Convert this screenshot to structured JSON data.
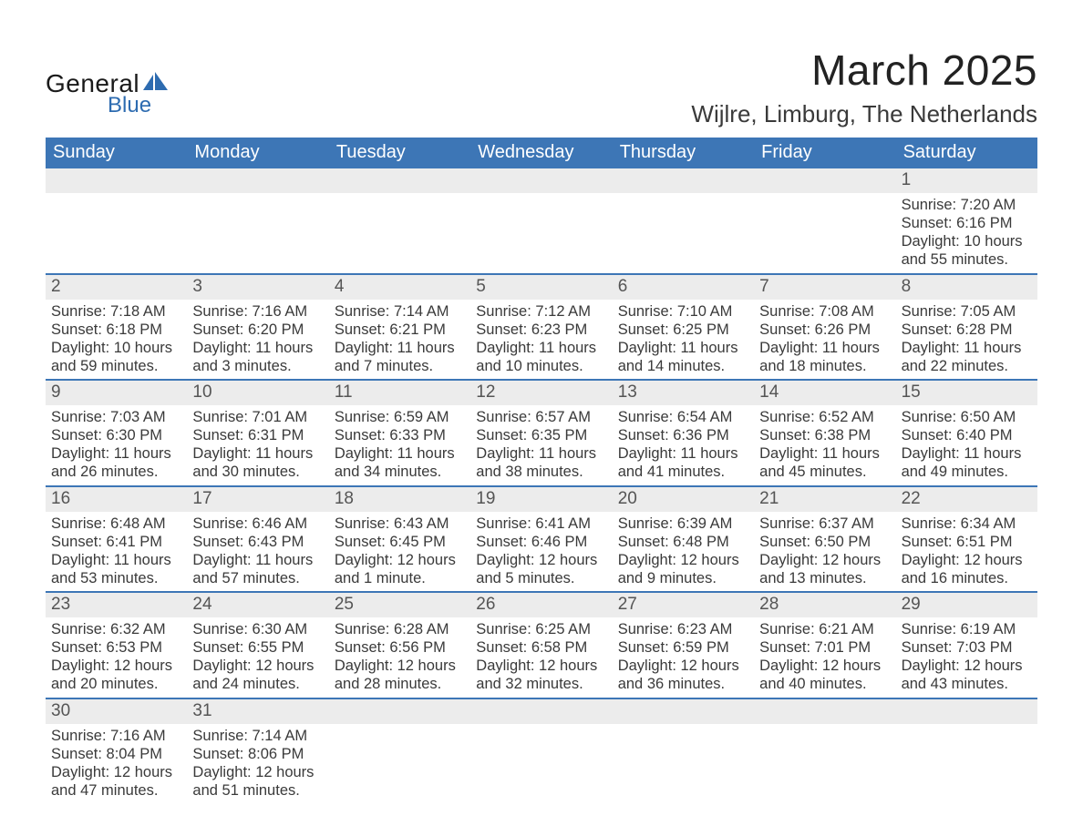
{
  "brand": {
    "top": "General",
    "bottom": "Blue",
    "icon_color": "#2d6bb0",
    "text_color_top": "#1a1a1a",
    "text_color_bottom": "#2d6bb0"
  },
  "header": {
    "month_title": "March 2025",
    "location": "Wijlre, Limburg, The Netherlands"
  },
  "styling": {
    "header_bg": "#3d76b6",
    "header_text": "#ffffff",
    "daynum_bg": "#ececec",
    "row_border": "#3d76b6",
    "body_text": "#3a3a3a",
    "page_bg": "#ffffff",
    "title_fontsize": 46,
    "location_fontsize": 26,
    "dayheader_fontsize": 20,
    "daynum_fontsize": 19,
    "cell_fontsize": 16.5
  },
  "day_names": [
    "Sunday",
    "Monday",
    "Tuesday",
    "Wednesday",
    "Thursday",
    "Friday",
    "Saturday"
  ],
  "weeks": [
    [
      {
        "day": "",
        "sunrise": "",
        "sunset": "",
        "daylight1": "",
        "daylight2": ""
      },
      {
        "day": "",
        "sunrise": "",
        "sunset": "",
        "daylight1": "",
        "daylight2": ""
      },
      {
        "day": "",
        "sunrise": "",
        "sunset": "",
        "daylight1": "",
        "daylight2": ""
      },
      {
        "day": "",
        "sunrise": "",
        "sunset": "",
        "daylight1": "",
        "daylight2": ""
      },
      {
        "day": "",
        "sunrise": "",
        "sunset": "",
        "daylight1": "",
        "daylight2": ""
      },
      {
        "day": "",
        "sunrise": "",
        "sunset": "",
        "daylight1": "",
        "daylight2": ""
      },
      {
        "day": "1",
        "sunrise": "Sunrise: 7:20 AM",
        "sunset": "Sunset: 6:16 PM",
        "daylight1": "Daylight: 10 hours",
        "daylight2": "and 55 minutes."
      }
    ],
    [
      {
        "day": "2",
        "sunrise": "Sunrise: 7:18 AM",
        "sunset": "Sunset: 6:18 PM",
        "daylight1": "Daylight: 10 hours",
        "daylight2": "and 59 minutes."
      },
      {
        "day": "3",
        "sunrise": "Sunrise: 7:16 AM",
        "sunset": "Sunset: 6:20 PM",
        "daylight1": "Daylight: 11 hours",
        "daylight2": "and 3 minutes."
      },
      {
        "day": "4",
        "sunrise": "Sunrise: 7:14 AM",
        "sunset": "Sunset: 6:21 PM",
        "daylight1": "Daylight: 11 hours",
        "daylight2": "and 7 minutes."
      },
      {
        "day": "5",
        "sunrise": "Sunrise: 7:12 AM",
        "sunset": "Sunset: 6:23 PM",
        "daylight1": "Daylight: 11 hours",
        "daylight2": "and 10 minutes."
      },
      {
        "day": "6",
        "sunrise": "Sunrise: 7:10 AM",
        "sunset": "Sunset: 6:25 PM",
        "daylight1": "Daylight: 11 hours",
        "daylight2": "and 14 minutes."
      },
      {
        "day": "7",
        "sunrise": "Sunrise: 7:08 AM",
        "sunset": "Sunset: 6:26 PM",
        "daylight1": "Daylight: 11 hours",
        "daylight2": "and 18 minutes."
      },
      {
        "day": "8",
        "sunrise": "Sunrise: 7:05 AM",
        "sunset": "Sunset: 6:28 PM",
        "daylight1": "Daylight: 11 hours",
        "daylight2": "and 22 minutes."
      }
    ],
    [
      {
        "day": "9",
        "sunrise": "Sunrise: 7:03 AM",
        "sunset": "Sunset: 6:30 PM",
        "daylight1": "Daylight: 11 hours",
        "daylight2": "and 26 minutes."
      },
      {
        "day": "10",
        "sunrise": "Sunrise: 7:01 AM",
        "sunset": "Sunset: 6:31 PM",
        "daylight1": "Daylight: 11 hours",
        "daylight2": "and 30 minutes."
      },
      {
        "day": "11",
        "sunrise": "Sunrise: 6:59 AM",
        "sunset": "Sunset: 6:33 PM",
        "daylight1": "Daylight: 11 hours",
        "daylight2": "and 34 minutes."
      },
      {
        "day": "12",
        "sunrise": "Sunrise: 6:57 AM",
        "sunset": "Sunset: 6:35 PM",
        "daylight1": "Daylight: 11 hours",
        "daylight2": "and 38 minutes."
      },
      {
        "day": "13",
        "sunrise": "Sunrise: 6:54 AM",
        "sunset": "Sunset: 6:36 PM",
        "daylight1": "Daylight: 11 hours",
        "daylight2": "and 41 minutes."
      },
      {
        "day": "14",
        "sunrise": "Sunrise: 6:52 AM",
        "sunset": "Sunset: 6:38 PM",
        "daylight1": "Daylight: 11 hours",
        "daylight2": "and 45 minutes."
      },
      {
        "day": "15",
        "sunrise": "Sunrise: 6:50 AM",
        "sunset": "Sunset: 6:40 PM",
        "daylight1": "Daylight: 11 hours",
        "daylight2": "and 49 minutes."
      }
    ],
    [
      {
        "day": "16",
        "sunrise": "Sunrise: 6:48 AM",
        "sunset": "Sunset: 6:41 PM",
        "daylight1": "Daylight: 11 hours",
        "daylight2": "and 53 minutes."
      },
      {
        "day": "17",
        "sunrise": "Sunrise: 6:46 AM",
        "sunset": "Sunset: 6:43 PM",
        "daylight1": "Daylight: 11 hours",
        "daylight2": "and 57 minutes."
      },
      {
        "day": "18",
        "sunrise": "Sunrise: 6:43 AM",
        "sunset": "Sunset: 6:45 PM",
        "daylight1": "Daylight: 12 hours",
        "daylight2": "and 1 minute."
      },
      {
        "day": "19",
        "sunrise": "Sunrise: 6:41 AM",
        "sunset": "Sunset: 6:46 PM",
        "daylight1": "Daylight: 12 hours",
        "daylight2": "and 5 minutes."
      },
      {
        "day": "20",
        "sunrise": "Sunrise: 6:39 AM",
        "sunset": "Sunset: 6:48 PM",
        "daylight1": "Daylight: 12 hours",
        "daylight2": "and 9 minutes."
      },
      {
        "day": "21",
        "sunrise": "Sunrise: 6:37 AM",
        "sunset": "Sunset: 6:50 PM",
        "daylight1": "Daylight: 12 hours",
        "daylight2": "and 13 minutes."
      },
      {
        "day": "22",
        "sunrise": "Sunrise: 6:34 AM",
        "sunset": "Sunset: 6:51 PM",
        "daylight1": "Daylight: 12 hours",
        "daylight2": "and 16 minutes."
      }
    ],
    [
      {
        "day": "23",
        "sunrise": "Sunrise: 6:32 AM",
        "sunset": "Sunset: 6:53 PM",
        "daylight1": "Daylight: 12 hours",
        "daylight2": "and 20 minutes."
      },
      {
        "day": "24",
        "sunrise": "Sunrise: 6:30 AM",
        "sunset": "Sunset: 6:55 PM",
        "daylight1": "Daylight: 12 hours",
        "daylight2": "and 24 minutes."
      },
      {
        "day": "25",
        "sunrise": "Sunrise: 6:28 AM",
        "sunset": "Sunset: 6:56 PM",
        "daylight1": "Daylight: 12 hours",
        "daylight2": "and 28 minutes."
      },
      {
        "day": "26",
        "sunrise": "Sunrise: 6:25 AM",
        "sunset": "Sunset: 6:58 PM",
        "daylight1": "Daylight: 12 hours",
        "daylight2": "and 32 minutes."
      },
      {
        "day": "27",
        "sunrise": "Sunrise: 6:23 AM",
        "sunset": "Sunset: 6:59 PM",
        "daylight1": "Daylight: 12 hours",
        "daylight2": "and 36 minutes."
      },
      {
        "day": "28",
        "sunrise": "Sunrise: 6:21 AM",
        "sunset": "Sunset: 7:01 PM",
        "daylight1": "Daylight: 12 hours",
        "daylight2": "and 40 minutes."
      },
      {
        "day": "29",
        "sunrise": "Sunrise: 6:19 AM",
        "sunset": "Sunset: 7:03 PM",
        "daylight1": "Daylight: 12 hours",
        "daylight2": "and 43 minutes."
      }
    ],
    [
      {
        "day": "30",
        "sunrise": "Sunrise: 7:16 AM",
        "sunset": "Sunset: 8:04 PM",
        "daylight1": "Daylight: 12 hours",
        "daylight2": "and 47 minutes."
      },
      {
        "day": "31",
        "sunrise": "Sunrise: 7:14 AM",
        "sunset": "Sunset: 8:06 PM",
        "daylight1": "Daylight: 12 hours",
        "daylight2": "and 51 minutes."
      },
      {
        "day": "",
        "sunrise": "",
        "sunset": "",
        "daylight1": "",
        "daylight2": ""
      },
      {
        "day": "",
        "sunrise": "",
        "sunset": "",
        "daylight1": "",
        "daylight2": ""
      },
      {
        "day": "",
        "sunrise": "",
        "sunset": "",
        "daylight1": "",
        "daylight2": ""
      },
      {
        "day": "",
        "sunrise": "",
        "sunset": "",
        "daylight1": "",
        "daylight2": ""
      },
      {
        "day": "",
        "sunrise": "",
        "sunset": "",
        "daylight1": "",
        "daylight2": ""
      }
    ]
  ]
}
